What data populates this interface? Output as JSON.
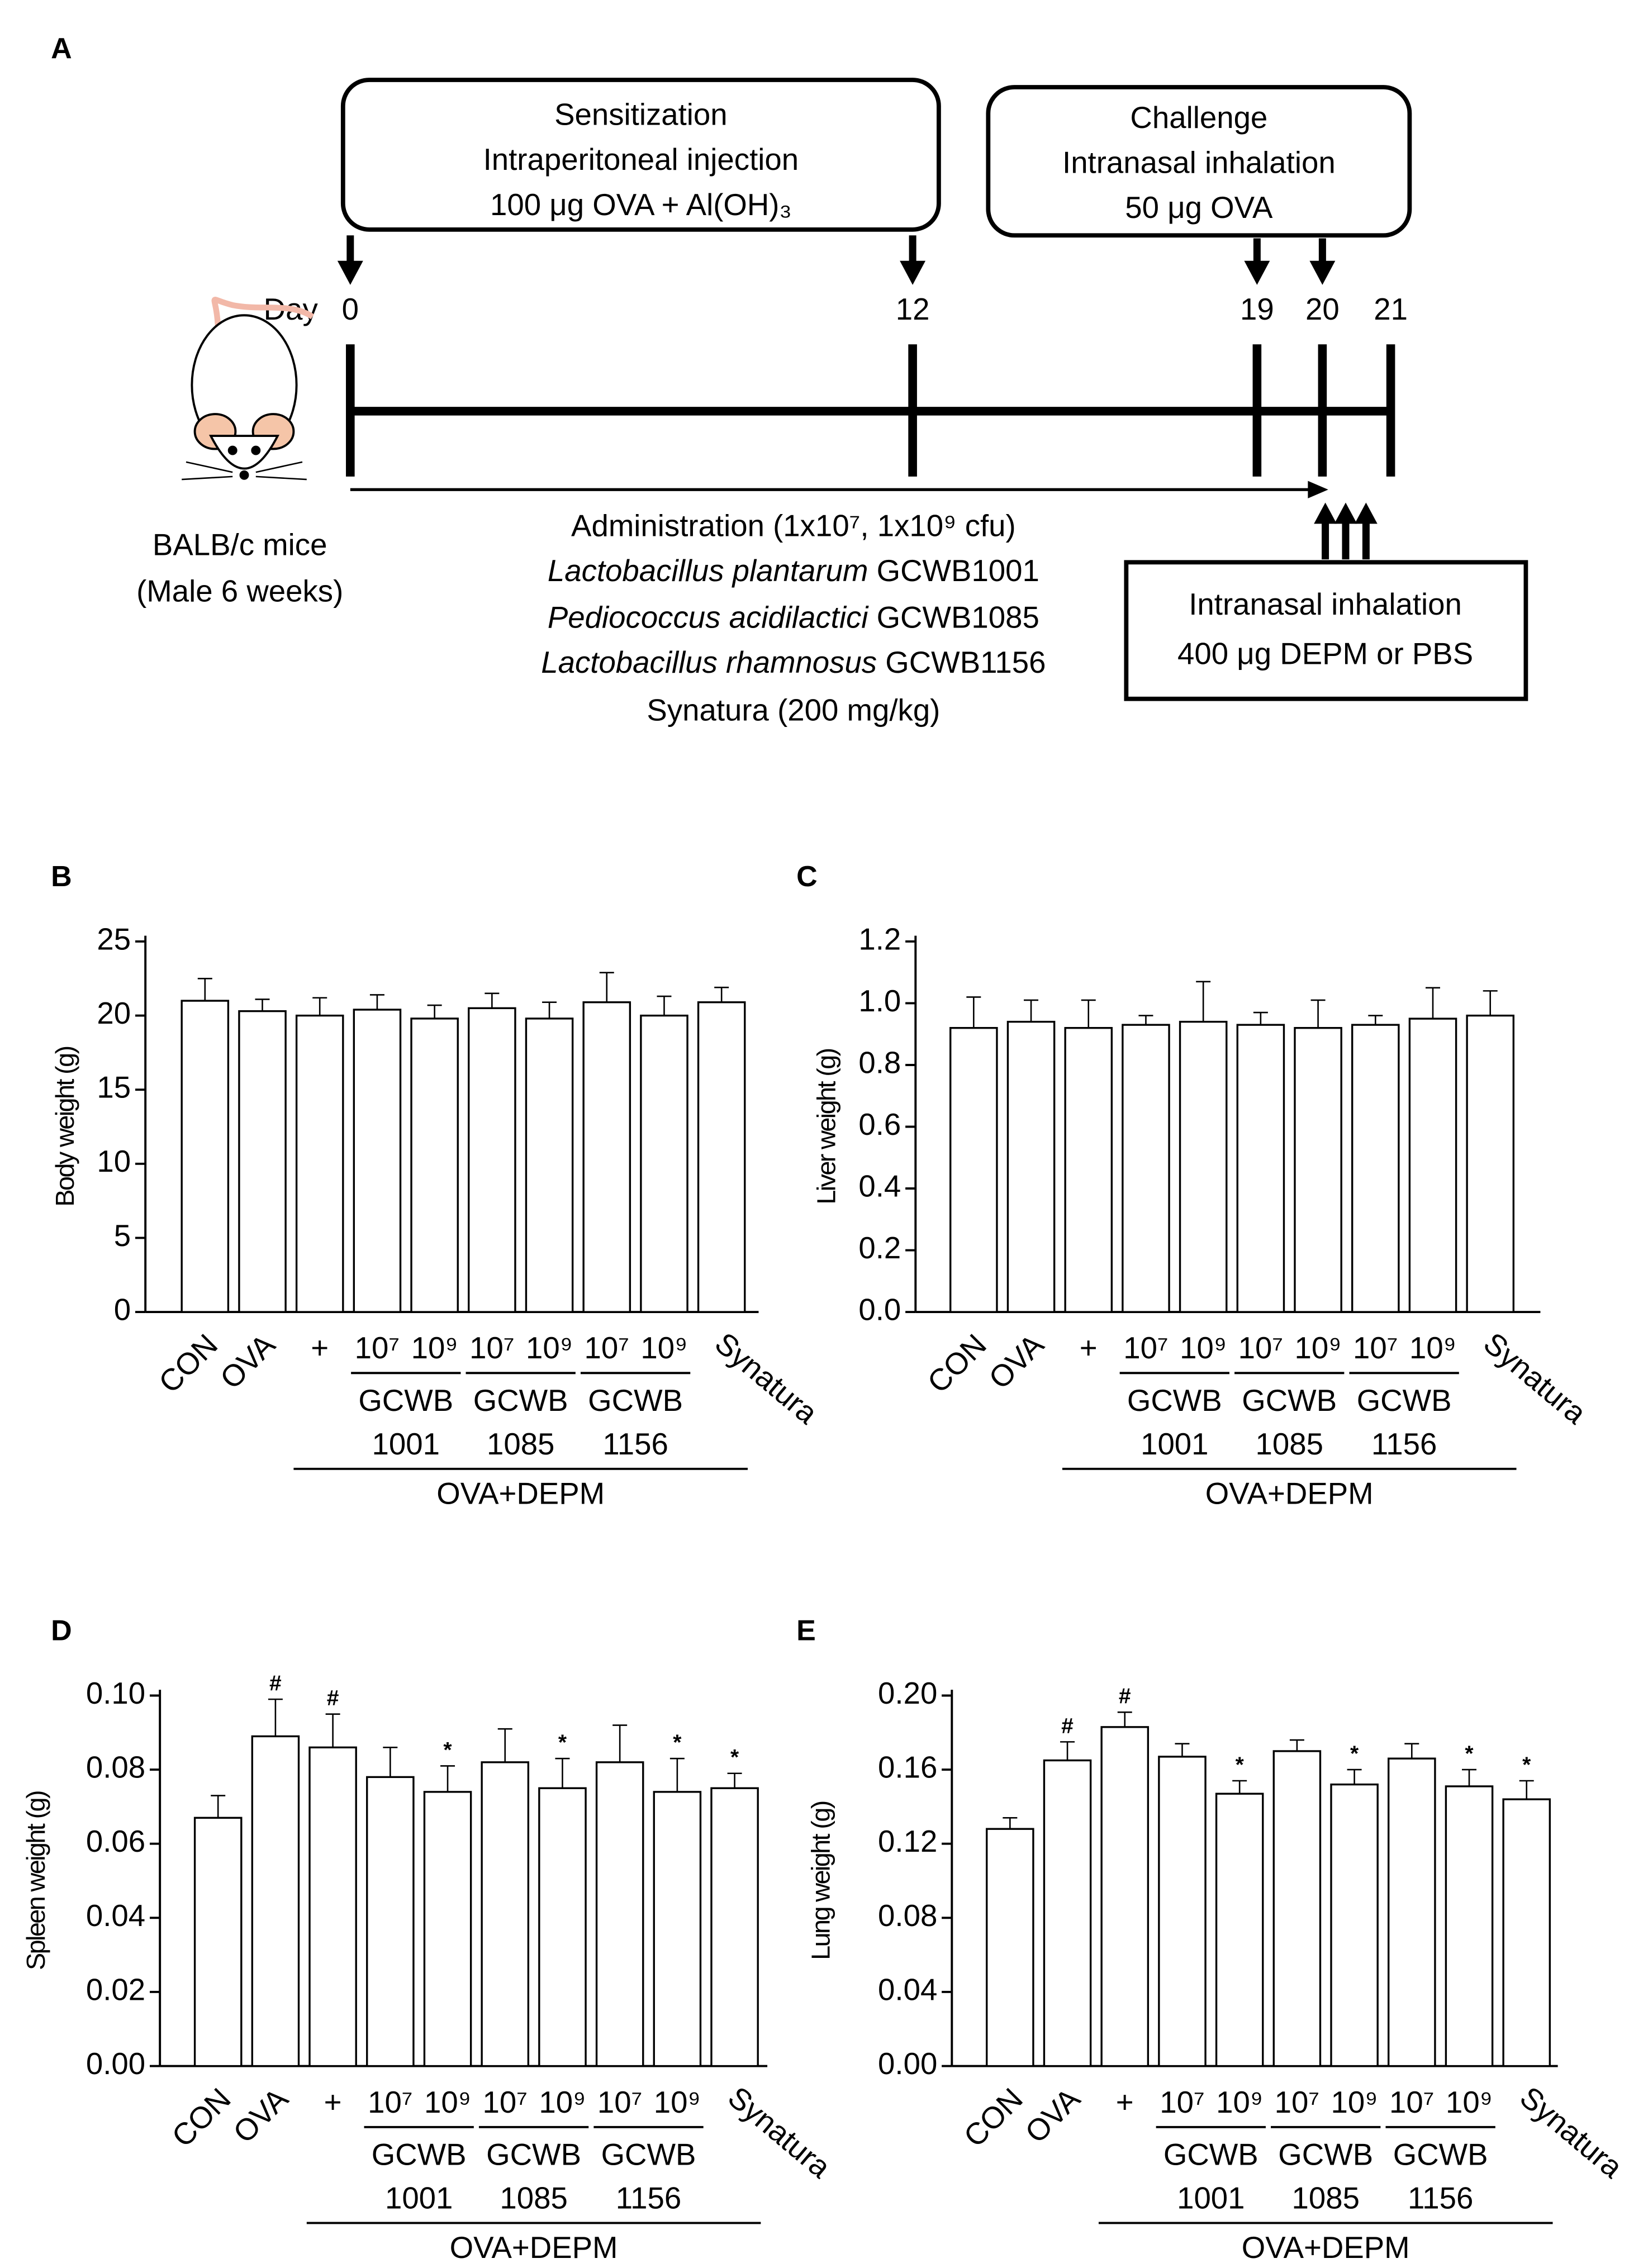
{
  "diagram": {
    "panel": "A",
    "sensitization": {
      "title": "Sensitization",
      "route": "Intraperitoneal injection",
      "dose": "100 μg OVA + Al(OH)₃"
    },
    "challenge": {
      "title": "Challenge",
      "route": "Intranasal inhalation",
      "dose": "50 μg OVA"
    },
    "day_label": "Day",
    "days": [
      "0",
      "12",
      "19",
      "20",
      "21"
    ],
    "mice": [
      "BALB/c mice",
      "(Male 6 weeks)"
    ],
    "administration": "Administration (1x10⁷, 1x10⁹ cfu)",
    "strains": [
      {
        "species": "Lactobacillus plantarum",
        "strain": "GCWB1001"
      },
      {
        "species": "Pediococcus acidilactici",
        "strain": "GCWB1085"
      },
      {
        "species": "Lactobacillus rhamnosus",
        "strain": "GCWB1156"
      }
    ],
    "control": "Synatura (200 mg/kg)",
    "inhalation": {
      "route": "Intranasal inhalation",
      "dose": "400 μg DEPM or PBS"
    }
  },
  "chart_data": [
    {
      "type": "bar",
      "panel": "B",
      "y_label": "Body weight (g)",
      "categories": [
        "CON",
        "OVA",
        "+",
        "10⁷",
        "10⁹",
        "10⁷",
        "10⁹",
        "10⁷",
        "10⁹",
        "Synatura"
      ],
      "groups": [
        {
          "name": "GCWB",
          "code": "1001"
        },
        {
          "name": "GCWB",
          "code": "1085"
        },
        {
          "name": "GCWB",
          "code": "1156"
        }
      ],
      "group_label": "OVA+DEPM",
      "values": [
        21.0,
        20.3,
        20.0,
        20.4,
        19.8,
        20.5,
        19.8,
        20.9,
        20.0,
        20.9
      ],
      "errors": [
        1.5,
        0.8,
        1.2,
        1.0,
        0.9,
        1.0,
        1.1,
        2.0,
        1.3,
        1.0
      ],
      "ylim": [
        0,
        25
      ],
      "yticks": [
        0,
        5,
        10,
        15,
        20,
        25
      ],
      "color": "#ffffff"
    },
    {
      "type": "bar",
      "panel": "C",
      "y_label": "Liver weight (g)",
      "categories": [
        "CON",
        "OVA",
        "+",
        "10⁷",
        "10⁹",
        "10⁷",
        "10⁹",
        "10⁷",
        "10⁹",
        "Synatura"
      ],
      "groups": [
        {
          "name": "GCWB",
          "code": "1001"
        },
        {
          "name": "GCWB",
          "code": "1085"
        },
        {
          "name": "GCWB",
          "code": "1156"
        }
      ],
      "group_label": "OVA+DEPM",
      "values": [
        0.92,
        0.94,
        0.92,
        0.93,
        0.94,
        0.93,
        0.92,
        0.93,
        0.95,
        0.96
      ],
      "errors": [
        0.1,
        0.07,
        0.09,
        0.03,
        0.13,
        0.04,
        0.09,
        0.03,
        0.1,
        0.08
      ],
      "ylim": [
        0,
        1.2
      ],
      "yticks": [
        {
          "value": 0,
          "label": "0.0"
        },
        0.2,
        0.4,
        0.6,
        0.8,
        {
          "value": 1,
          "label": "1.0"
        },
        1.2
      ],
      "color": "#ffffff"
    },
    {
      "type": "bar",
      "panel": "D",
      "y_label": "Spleen weight (g)",
      "categories": [
        "CON",
        "OVA",
        "+",
        "10⁷",
        "10⁹",
        "10⁷",
        "10⁹",
        "10⁷",
        "10⁹",
        "Synatura"
      ],
      "groups": [
        {
          "name": "GCWB",
          "code": "1001"
        },
        {
          "name": "GCWB",
          "code": "1085"
        },
        {
          "name": "GCWB",
          "code": "1156"
        }
      ],
      "group_label": "OVA+DEPM",
      "values": [
        0.067,
        0.089,
        0.086,
        0.078,
        0.074,
        0.082,
        0.075,
        0.082,
        0.074,
        0.075
      ],
      "errors": [
        0.006,
        0.01,
        0.009,
        0.008,
        0.007,
        0.009,
        0.008,
        0.01,
        0.009,
        0.004
      ],
      "significance": [
        null,
        "#",
        "#",
        null,
        "*",
        null,
        "*",
        null,
        "*",
        "*"
      ],
      "ylim": [
        0,
        0.1
      ],
      "yticks": [
        {
          "value": 0,
          "label": "0.00"
        },
        {
          "value": 0.02,
          "label": "0.02"
        },
        {
          "value": 0.04,
          "label": "0.04"
        },
        {
          "value": 0.06,
          "label": "0.06"
        },
        {
          "value": 0.08,
          "label": "0.08"
        },
        {
          "value": 0.1,
          "label": "0.10"
        }
      ],
      "color": "#ffffff"
    },
    {
      "type": "bar",
      "panel": "E",
      "y_label": "Lung weight (g)",
      "categories": [
        "CON",
        "OVA",
        "+",
        "10⁷",
        "10⁹",
        "10⁷",
        "10⁹",
        "10⁷",
        "10⁹",
        "Synatura"
      ],
      "groups": [
        {
          "name": "GCWB",
          "code": "1001"
        },
        {
          "name": "GCWB",
          "code": "1085"
        },
        {
          "name": "GCWB",
          "code": "1156"
        }
      ],
      "group_label": "OVA+DEPM",
      "values": [
        0.128,
        0.165,
        0.183,
        0.167,
        0.147,
        0.17,
        0.152,
        0.166,
        0.151,
        0.144
      ],
      "errors": [
        0.006,
        0.01,
        0.008,
        0.007,
        0.007,
        0.006,
        0.008,
        0.008,
        0.009,
        0.01
      ],
      "significance": [
        null,
        "#",
        "#",
        null,
        "*",
        null,
        "*",
        null,
        "*",
        "*"
      ],
      "ylim": [
        0,
        0.2
      ],
      "yticks": [
        {
          "value": 0,
          "label": "0.00"
        },
        {
          "value": 0.04,
          "label": "0.04"
        },
        {
          "value": 0.08,
          "label": "0.08"
        },
        {
          "value": 0.12,
          "label": "0.12"
        },
        {
          "value": 0.16,
          "label": "0.16"
        },
        {
          "value": 0.2,
          "label": "0.20"
        }
      ],
      "color": "#ffffff"
    }
  ]
}
